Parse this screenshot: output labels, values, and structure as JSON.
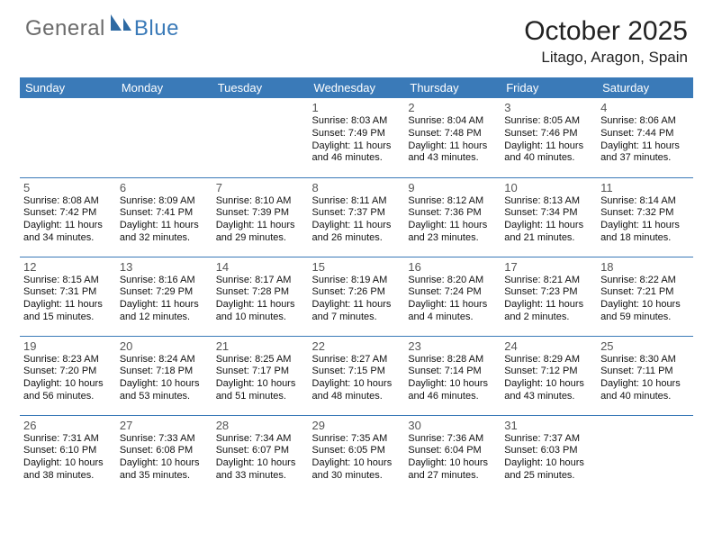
{
  "logo": {
    "general": "General",
    "blue": "Blue"
  },
  "title": "October 2025",
  "location": "Litago, Aragon, Spain",
  "colors": {
    "header_bg": "#3a7ab8",
    "header_text": "#ffffff",
    "logo_gray": "#6b6b6b",
    "logo_blue": "#3a7ab8",
    "cell_border": "#3a7ab8",
    "daynum_color": "#555555",
    "body_text": "#111111",
    "background": "#ffffff"
  },
  "fonts": {
    "title_size": 30,
    "location_size": 17,
    "dayheader_size": 13,
    "daynum_size": 13,
    "cell_size": 11
  },
  "day_headers": [
    "Sunday",
    "Monday",
    "Tuesday",
    "Wednesday",
    "Thursday",
    "Friday",
    "Saturday"
  ],
  "weeks": [
    [
      {
        "n": "",
        "sr": "",
        "ss": "",
        "dl": ""
      },
      {
        "n": "",
        "sr": "",
        "ss": "",
        "dl": ""
      },
      {
        "n": "",
        "sr": "",
        "ss": "",
        "dl": ""
      },
      {
        "n": "1",
        "sr": "Sunrise: 8:03 AM",
        "ss": "Sunset: 7:49 PM",
        "dl": "Daylight: 11 hours and 46 minutes."
      },
      {
        "n": "2",
        "sr": "Sunrise: 8:04 AM",
        "ss": "Sunset: 7:48 PM",
        "dl": "Daylight: 11 hours and 43 minutes."
      },
      {
        "n": "3",
        "sr": "Sunrise: 8:05 AM",
        "ss": "Sunset: 7:46 PM",
        "dl": "Daylight: 11 hours and 40 minutes."
      },
      {
        "n": "4",
        "sr": "Sunrise: 8:06 AM",
        "ss": "Sunset: 7:44 PM",
        "dl": "Daylight: 11 hours and 37 minutes."
      }
    ],
    [
      {
        "n": "5",
        "sr": "Sunrise: 8:08 AM",
        "ss": "Sunset: 7:42 PM",
        "dl": "Daylight: 11 hours and 34 minutes."
      },
      {
        "n": "6",
        "sr": "Sunrise: 8:09 AM",
        "ss": "Sunset: 7:41 PM",
        "dl": "Daylight: 11 hours and 32 minutes."
      },
      {
        "n": "7",
        "sr": "Sunrise: 8:10 AM",
        "ss": "Sunset: 7:39 PM",
        "dl": "Daylight: 11 hours and 29 minutes."
      },
      {
        "n": "8",
        "sr": "Sunrise: 8:11 AM",
        "ss": "Sunset: 7:37 PM",
        "dl": "Daylight: 11 hours and 26 minutes."
      },
      {
        "n": "9",
        "sr": "Sunrise: 8:12 AM",
        "ss": "Sunset: 7:36 PM",
        "dl": "Daylight: 11 hours and 23 minutes."
      },
      {
        "n": "10",
        "sr": "Sunrise: 8:13 AM",
        "ss": "Sunset: 7:34 PM",
        "dl": "Daylight: 11 hours and 21 minutes."
      },
      {
        "n": "11",
        "sr": "Sunrise: 8:14 AM",
        "ss": "Sunset: 7:32 PM",
        "dl": "Daylight: 11 hours and 18 minutes."
      }
    ],
    [
      {
        "n": "12",
        "sr": "Sunrise: 8:15 AM",
        "ss": "Sunset: 7:31 PM",
        "dl": "Daylight: 11 hours and 15 minutes."
      },
      {
        "n": "13",
        "sr": "Sunrise: 8:16 AM",
        "ss": "Sunset: 7:29 PM",
        "dl": "Daylight: 11 hours and 12 minutes."
      },
      {
        "n": "14",
        "sr": "Sunrise: 8:17 AM",
        "ss": "Sunset: 7:28 PM",
        "dl": "Daylight: 11 hours and 10 minutes."
      },
      {
        "n": "15",
        "sr": "Sunrise: 8:19 AM",
        "ss": "Sunset: 7:26 PM",
        "dl": "Daylight: 11 hours and 7 minutes."
      },
      {
        "n": "16",
        "sr": "Sunrise: 8:20 AM",
        "ss": "Sunset: 7:24 PM",
        "dl": "Daylight: 11 hours and 4 minutes."
      },
      {
        "n": "17",
        "sr": "Sunrise: 8:21 AM",
        "ss": "Sunset: 7:23 PM",
        "dl": "Daylight: 11 hours and 2 minutes."
      },
      {
        "n": "18",
        "sr": "Sunrise: 8:22 AM",
        "ss": "Sunset: 7:21 PM",
        "dl": "Daylight: 10 hours and 59 minutes."
      }
    ],
    [
      {
        "n": "19",
        "sr": "Sunrise: 8:23 AM",
        "ss": "Sunset: 7:20 PM",
        "dl": "Daylight: 10 hours and 56 minutes."
      },
      {
        "n": "20",
        "sr": "Sunrise: 8:24 AM",
        "ss": "Sunset: 7:18 PM",
        "dl": "Daylight: 10 hours and 53 minutes."
      },
      {
        "n": "21",
        "sr": "Sunrise: 8:25 AM",
        "ss": "Sunset: 7:17 PM",
        "dl": "Daylight: 10 hours and 51 minutes."
      },
      {
        "n": "22",
        "sr": "Sunrise: 8:27 AM",
        "ss": "Sunset: 7:15 PM",
        "dl": "Daylight: 10 hours and 48 minutes."
      },
      {
        "n": "23",
        "sr": "Sunrise: 8:28 AM",
        "ss": "Sunset: 7:14 PM",
        "dl": "Daylight: 10 hours and 46 minutes."
      },
      {
        "n": "24",
        "sr": "Sunrise: 8:29 AM",
        "ss": "Sunset: 7:12 PM",
        "dl": "Daylight: 10 hours and 43 minutes."
      },
      {
        "n": "25",
        "sr": "Sunrise: 8:30 AM",
        "ss": "Sunset: 7:11 PM",
        "dl": "Daylight: 10 hours and 40 minutes."
      }
    ],
    [
      {
        "n": "26",
        "sr": "Sunrise: 7:31 AM",
        "ss": "Sunset: 6:10 PM",
        "dl": "Daylight: 10 hours and 38 minutes."
      },
      {
        "n": "27",
        "sr": "Sunrise: 7:33 AM",
        "ss": "Sunset: 6:08 PM",
        "dl": "Daylight: 10 hours and 35 minutes."
      },
      {
        "n": "28",
        "sr": "Sunrise: 7:34 AM",
        "ss": "Sunset: 6:07 PM",
        "dl": "Daylight: 10 hours and 33 minutes."
      },
      {
        "n": "29",
        "sr": "Sunrise: 7:35 AM",
        "ss": "Sunset: 6:05 PM",
        "dl": "Daylight: 10 hours and 30 minutes."
      },
      {
        "n": "30",
        "sr": "Sunrise: 7:36 AM",
        "ss": "Sunset: 6:04 PM",
        "dl": "Daylight: 10 hours and 27 minutes."
      },
      {
        "n": "31",
        "sr": "Sunrise: 7:37 AM",
        "ss": "Sunset: 6:03 PM",
        "dl": "Daylight: 10 hours and 25 minutes."
      },
      {
        "n": "",
        "sr": "",
        "ss": "",
        "dl": ""
      }
    ]
  ]
}
